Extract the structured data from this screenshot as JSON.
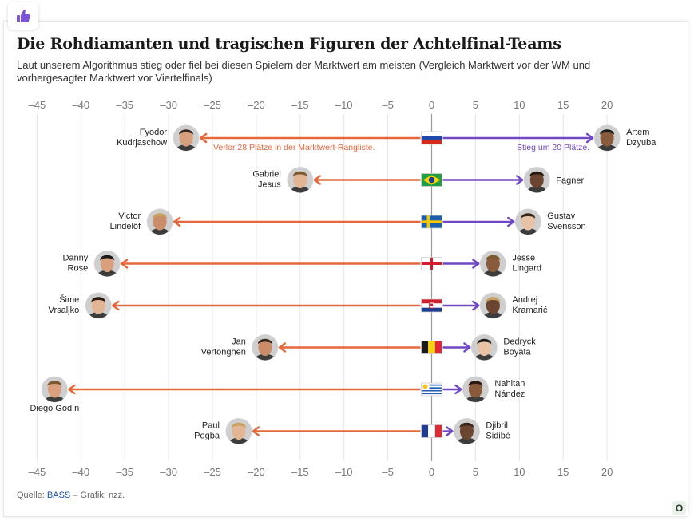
{
  "header": {
    "title": "Die Rohdiamanten und tragischen Figuren der Achtelfinal-Teams",
    "subtitle": "Laut unserem Algorithmus stieg oder fiel bei diesen Spielern der Marktwert am meisten (Vergleich Marktwert vor der WM und vorhergesagter Marktwert vor Viertelfinals)"
  },
  "footer": {
    "source_prefix": "Quelle: ",
    "source_link": "BASS",
    "source_suffix": " – Grafik: nzz.",
    "badge": "O"
  },
  "colors": {
    "fall": "#e4683c",
    "rise": "#7048c4",
    "axis": "#9a9a9a",
    "grid": "#e5e5e5"
  },
  "chart_data": {
    "type": "arrow-diverging",
    "xlim": [
      -45,
      20
    ],
    "ticks": [
      -45,
      -40,
      -35,
      -30,
      -25,
      -20,
      -15,
      -10,
      -5,
      0,
      5,
      10,
      15,
      20
    ],
    "tick_labels": [
      "–45",
      "–40",
      "–35",
      "–30",
      "–25",
      "–20",
      "–15",
      "–10",
      "–5",
      "0",
      "5",
      "10",
      "15",
      "20"
    ],
    "annotations": {
      "fall": "Verlor 28 Plätze in der Marktwert-Rangliste.",
      "rise": "Stieg um 20 Plätze."
    },
    "rows": [
      {
        "country": "Russland",
        "flag": "russia",
        "faller": "Fyodor Kudrjaschow",
        "faller_lines": [
          "Fyodor",
          "Kudrjaschow"
        ],
        "fall": -28,
        "riser": "Artem Dzyuba",
        "riser_lines": [
          "Artem",
          "Dzyuba"
        ],
        "rise": 20
      },
      {
        "country": "Brasilien",
        "flag": "brazil",
        "faller": "Gabriel Jesus",
        "faller_lines": [
          "Gabriel",
          "Jesus"
        ],
        "fall": -15,
        "riser": "Fagner",
        "riser_lines": [
          "Fagner"
        ],
        "rise": 12
      },
      {
        "country": "Schweden",
        "flag": "sweden",
        "faller": "Victor Lindelöf",
        "faller_lines": [
          "Victor",
          "Lindelöf"
        ],
        "fall": -31,
        "riser": "Gustav Svensson",
        "riser_lines": [
          "Gustav",
          "Svensson"
        ],
        "rise": 11
      },
      {
        "country": "England",
        "flag": "england",
        "faller": "Danny Rose",
        "faller_lines": [
          "Danny",
          "Rose"
        ],
        "fall": -37,
        "riser": "Jesse Lingard",
        "riser_lines": [
          "Jesse",
          "Lingard"
        ],
        "rise": 7
      },
      {
        "country": "Kroatien",
        "flag": "croatia",
        "faller": "Šime Vrsaljko",
        "faller_lines": [
          "Šime",
          "Vrsaljko"
        ],
        "fall": -38,
        "riser": "Andrej Kramarić",
        "riser_lines": [
          "Andrej",
          "Kramarić"
        ],
        "rise": 7
      },
      {
        "country": "Belgien",
        "flag": "belgium",
        "faller": "Jan Vertonghen",
        "faller_lines": [
          "Jan",
          "Vertonghen"
        ],
        "fall": -19,
        "riser": "Dedryck Boyata",
        "riser_lines": [
          "Dedryck",
          "Boyata"
        ],
        "rise": 6
      },
      {
        "country": "Uruguay",
        "flag": "uruguay",
        "faller": "Diego Godín",
        "faller_lines": [
          "Diego Godín"
        ],
        "fall": -43,
        "riser": "Nahitan Nández",
        "riser_lines": [
          "Nahitan",
          "Nández"
        ],
        "rise": 5
      },
      {
        "country": "Frankreich",
        "flag": "france",
        "faller": "Paul Pogba",
        "faller_lines": [
          "Paul",
          "Pogba"
        ],
        "fall": -22,
        "riser": "Djibril Sidibé",
        "riser_lines": [
          "Djibril",
          "Sidibé"
        ],
        "rise": 4
      }
    ]
  }
}
